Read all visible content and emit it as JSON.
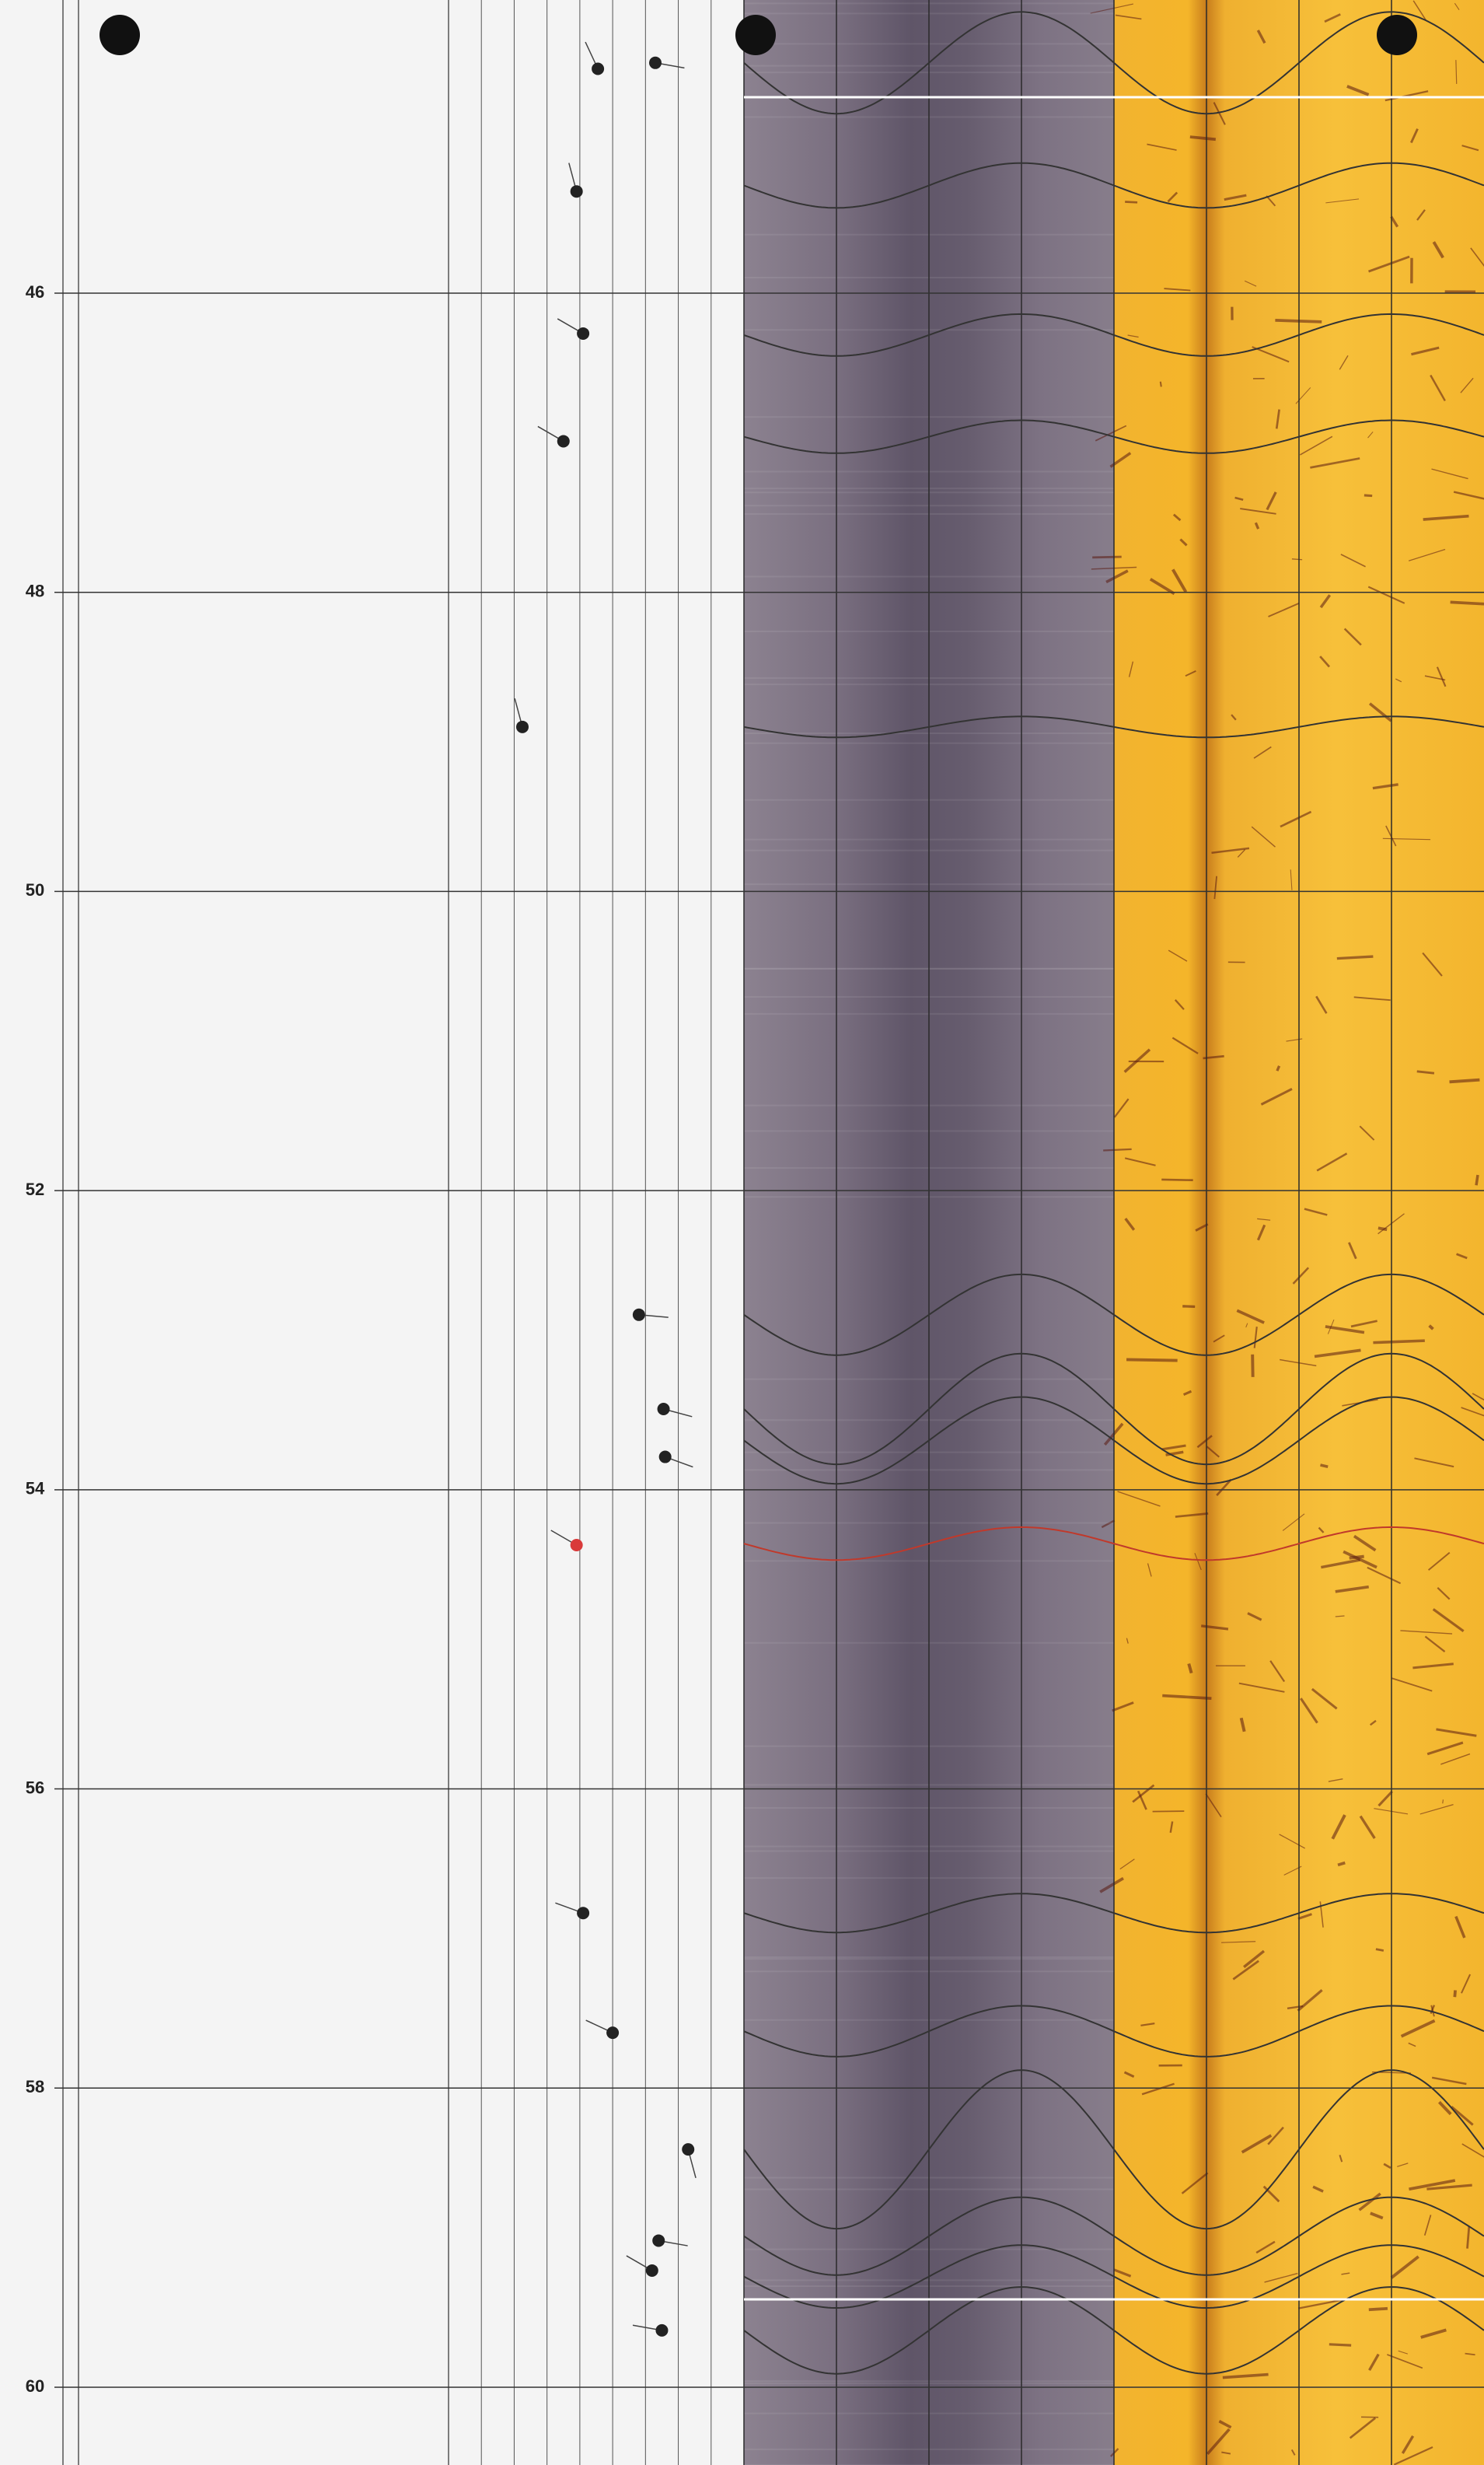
{
  "chart_data": {
    "type": "tadpole",
    "ylim": [
      44.04,
      60.52
    ],
    "yticks": [
      46,
      48,
      50,
      52,
      54,
      56,
      58,
      60
    ],
    "xlim": [
      0,
      90
    ],
    "tadpoles": [
      {
        "depth": 44.5,
        "dip": 45.5,
        "azimuth": 335,
        "color": "#222222"
      },
      {
        "depth": 44.46,
        "dip": 63,
        "azimuth": 100,
        "color": "#222222"
      },
      {
        "depth": 45.32,
        "dip": 39,
        "azimuth": 345,
        "color": "#222222"
      },
      {
        "depth": 46.27,
        "dip": 41,
        "azimuth": 300,
        "color": "#222222"
      },
      {
        "depth": 46.99,
        "dip": 35,
        "azimuth": 300,
        "color": "#222222"
      },
      {
        "depth": 48.9,
        "dip": 22.5,
        "azimuth": 345,
        "color": "#222222"
      },
      {
        "depth": 52.83,
        "dip": 58,
        "azimuth": 95,
        "color": "#222222"
      },
      {
        "depth": 53.46,
        "dip": 65.5,
        "azimuth": 105,
        "color": "#222222"
      },
      {
        "depth": 53.78,
        "dip": 66,
        "azimuth": 110,
        "color": "#222222"
      },
      {
        "depth": 54.37,
        "dip": 39,
        "azimuth": 300,
        "color": "#d93a3a"
      },
      {
        "depth": 56.83,
        "dip": 41,
        "azimuth": 290,
        "color": "#222222"
      },
      {
        "depth": 57.63,
        "dip": 50,
        "azimuth": 295,
        "color": "#222222"
      },
      {
        "depth": 58.41,
        "dip": 73,
        "azimuth": 165,
        "color": "#222222"
      },
      {
        "depth": 59.02,
        "dip": 64,
        "azimuth": 100,
        "color": "#222222"
      },
      {
        "depth": 59.22,
        "dip": 62,
        "azimuth": 300,
        "color": "#222222"
      },
      {
        "depth": 59.62,
        "dip": 65,
        "azimuth": 280,
        "color": "#222222"
      }
    ],
    "sinusoids": [
      {
        "depth": 44.46,
        "amplitude": 0.34,
        "color": "#333333"
      },
      {
        "depth": 45.28,
        "amplitude": 0.15,
        "color": "#333333"
      },
      {
        "depth": 46.28,
        "amplitude": 0.14,
        "color": "#333333"
      },
      {
        "depth": 46.96,
        "amplitude": 0.11,
        "color": "#333333"
      },
      {
        "depth": 48.9,
        "amplitude": 0.07,
        "color": "#333333"
      },
      {
        "depth": 52.83,
        "amplitude": 0.27,
        "color": "#333333"
      },
      {
        "depth": 53.46,
        "amplitude": 0.37,
        "color": "#333333"
      },
      {
        "depth": 53.67,
        "amplitude": 0.29,
        "color": "#333333"
      },
      {
        "depth": 54.36,
        "amplitude": 0.11,
        "color": "#c0392b"
      },
      {
        "depth": 56.83,
        "amplitude": 0.13,
        "color": "#333333"
      },
      {
        "depth": 57.62,
        "amplitude": 0.17,
        "color": "#333333"
      },
      {
        "depth": 58.41,
        "amplitude": 0.53,
        "color": "#333333"
      },
      {
        "depth": 58.99,
        "amplitude": 0.26,
        "color": "#333333"
      },
      {
        "depth": 59.26,
        "amplitude": 0.21,
        "color": "#333333"
      },
      {
        "depth": 59.62,
        "amplitude": 0.29,
        "color": "#333333"
      }
    ]
  }
}
